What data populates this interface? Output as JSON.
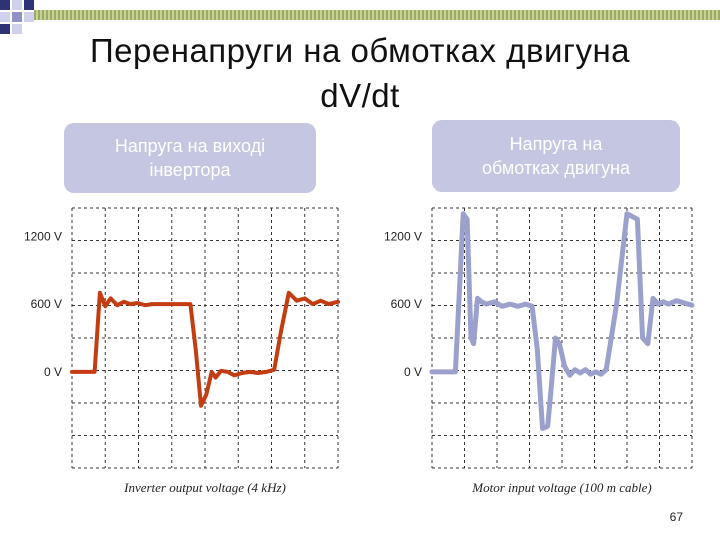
{
  "slide": {
    "title_line1": "Перенапруги на обмотках двигуна",
    "title_line2": "dV/dt",
    "page_number": "67"
  },
  "callouts": {
    "left_line1": "Напруга на виході",
    "left_line2": "інвертора",
    "right_line1": "Напруга на",
    "right_line2": "обмотках двигуна"
  },
  "colors": {
    "left_trace": "#c43c12",
    "right_trace": "#9ba1cc",
    "callout_bg": "#c4c6e2",
    "deco_dark": "#2e3277",
    "deco_mid": "#8e92c4",
    "deco_light": "#cfd2ea"
  },
  "chart_data": [
    {
      "type": "line",
      "caption": "Inverter output voltage (4 kHz)",
      "ylabels": [
        "1200 V",
        "600 V",
        "0 V"
      ],
      "y_ticks": [
        1200,
        600,
        0
      ],
      "ylim": [
        -850,
        1450
      ],
      "xlim": [
        0,
        10
      ],
      "grid": true,
      "series": [
        {
          "x": [
            0,
            0.85,
            1.05,
            1.25,
            1.45,
            1.7,
            1.95,
            2.2,
            2.45,
            2.75,
            3.0,
            3.5,
            4.0,
            4.45,
            4.65,
            4.85,
            5.05,
            5.25,
            5.4,
            5.6,
            5.85,
            6.1,
            6.4,
            6.7,
            7.0,
            7.3,
            7.6,
            7.85,
            8.15,
            8.45,
            8.75,
            9.05,
            9.35,
            9.65,
            10
          ],
          "y": [
            0,
            0,
            700,
            580,
            650,
            590,
            620,
            600,
            610,
            590,
            600,
            600,
            600,
            600,
            200,
            -300,
            -200,
            0,
            -50,
            10,
            0,
            -30,
            -10,
            0,
            -10,
            0,
            20,
            350,
            700,
            630,
            650,
            600,
            630,
            600,
            620
          ]
        }
      ]
    },
    {
      "type": "line",
      "caption": "Motor input voltage (100 m cable)",
      "ylabels": [
        "1200 V",
        "600 V",
        "0 V"
      ],
      "y_ticks": [
        1200,
        600,
        0
      ],
      "ylim": [
        -850,
        1450
      ],
      "xlim": [
        0,
        10
      ],
      "grid": true,
      "series": [
        {
          "x": [
            0,
            0.9,
            1.05,
            1.2,
            1.35,
            1.5,
            1.6,
            1.75,
            1.9,
            2.1,
            2.4,
            2.7,
            3.0,
            3.3,
            3.6,
            3.85,
            4.05,
            4.25,
            4.45,
            4.6,
            4.75,
            4.9,
            5.1,
            5.3,
            5.5,
            5.7,
            5.9,
            6.1,
            6.3,
            6.5,
            6.7,
            7.1,
            7.5,
            7.9,
            8.1,
            8.3,
            8.5,
            8.7,
            8.9,
            9.1,
            9.4,
            9.7,
            10
          ],
          "y": [
            0,
            0,
            700,
            1400,
            1350,
            300,
            250,
            650,
            620,
            600,
            620,
            580,
            600,
            580,
            600,
            580,
            200,
            -500,
            -480,
            -100,
            300,
            250,
            50,
            -30,
            20,
            -10,
            20,
            -20,
            0,
            -20,
            20,
            600,
            1400,
            1350,
            300,
            250,
            650,
            600,
            620,
            600,
            630,
            610,
            590
          ]
        }
      ]
    }
  ]
}
